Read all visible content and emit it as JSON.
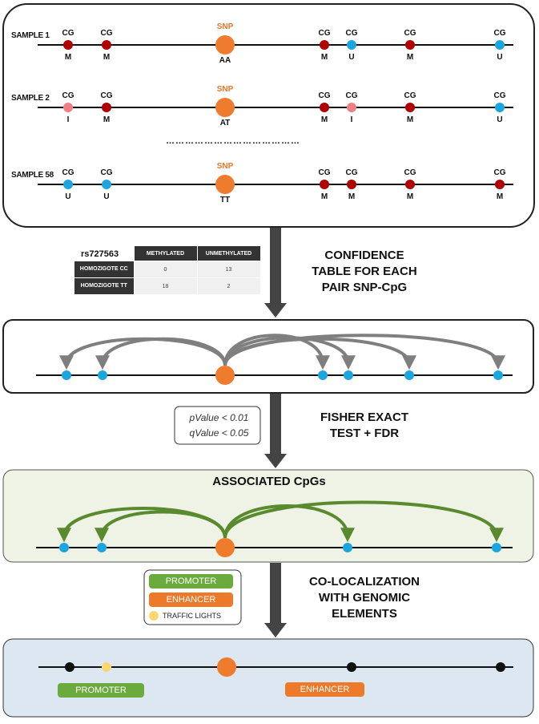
{
  "samples": [
    {
      "label": "SAMPLE 1",
      "snp_state": "AA",
      "cg_states": [
        "M",
        "M",
        "M",
        "U",
        "M",
        "U"
      ]
    },
    {
      "label": "SAMPLE 2",
      "snp_state": "AT",
      "cg_states": [
        "I",
        "M",
        "M",
        "I",
        "M",
        "U"
      ]
    },
    {
      "label": "SAMPLE 58",
      "snp_state": "TT",
      "cg_states": [
        "U",
        "U",
        "M",
        "M",
        "M",
        "M"
      ]
    }
  ],
  "cg_label": "CG",
  "snp_label": "SNP",
  "ellipsis": "……………………………………",
  "confidence_table": {
    "snp_id": "rs727563",
    "columns": [
      "METHYLATED",
      "UNMETHYLATED"
    ],
    "rows": [
      {
        "label": "HOMOZIGOTE CC",
        "values": [
          "0",
          "13"
        ]
      },
      {
        "label": "HOMOZIGOTE TT",
        "values": [
          "18",
          "2"
        ]
      }
    ]
  },
  "steps": {
    "confidence": "CONFIDENCE TABLE FOR EACH PAIR SNP-CpG",
    "fisher": "FISHER EXACT TEST + FDR",
    "colocalization": "CO-LOCALIZATION WITH GENOMIC ELEMENTS"
  },
  "stats": {
    "pvalue": "pValue < 0.01",
    "qvalue": "qValue < 0.05"
  },
  "associated_title": "ASSOCIATED CpGs",
  "legend": {
    "promoter": "PROMOTER",
    "enhancer": "ENHANCER",
    "traffic_lights": "TRAFFIC LIGHTS"
  },
  "annotations": {
    "promoter": "PROMOTER",
    "enhancer": "ENHANCER"
  },
  "colors": {
    "methylated": "#b00000",
    "unmethylated": "#1ba6e0",
    "intermediate": "#f07f85",
    "snp": "#ef7b2c",
    "promoter": "#6bab3e",
    "enhancer": "#ec7a2a",
    "traffic_light": "#fbd76d",
    "associated_panel": "#eef3e6",
    "genomic_panel": "#dce7f2",
    "arrow_gray": "#7f7f7f",
    "arrow_green": "#5a8a2e"
  }
}
